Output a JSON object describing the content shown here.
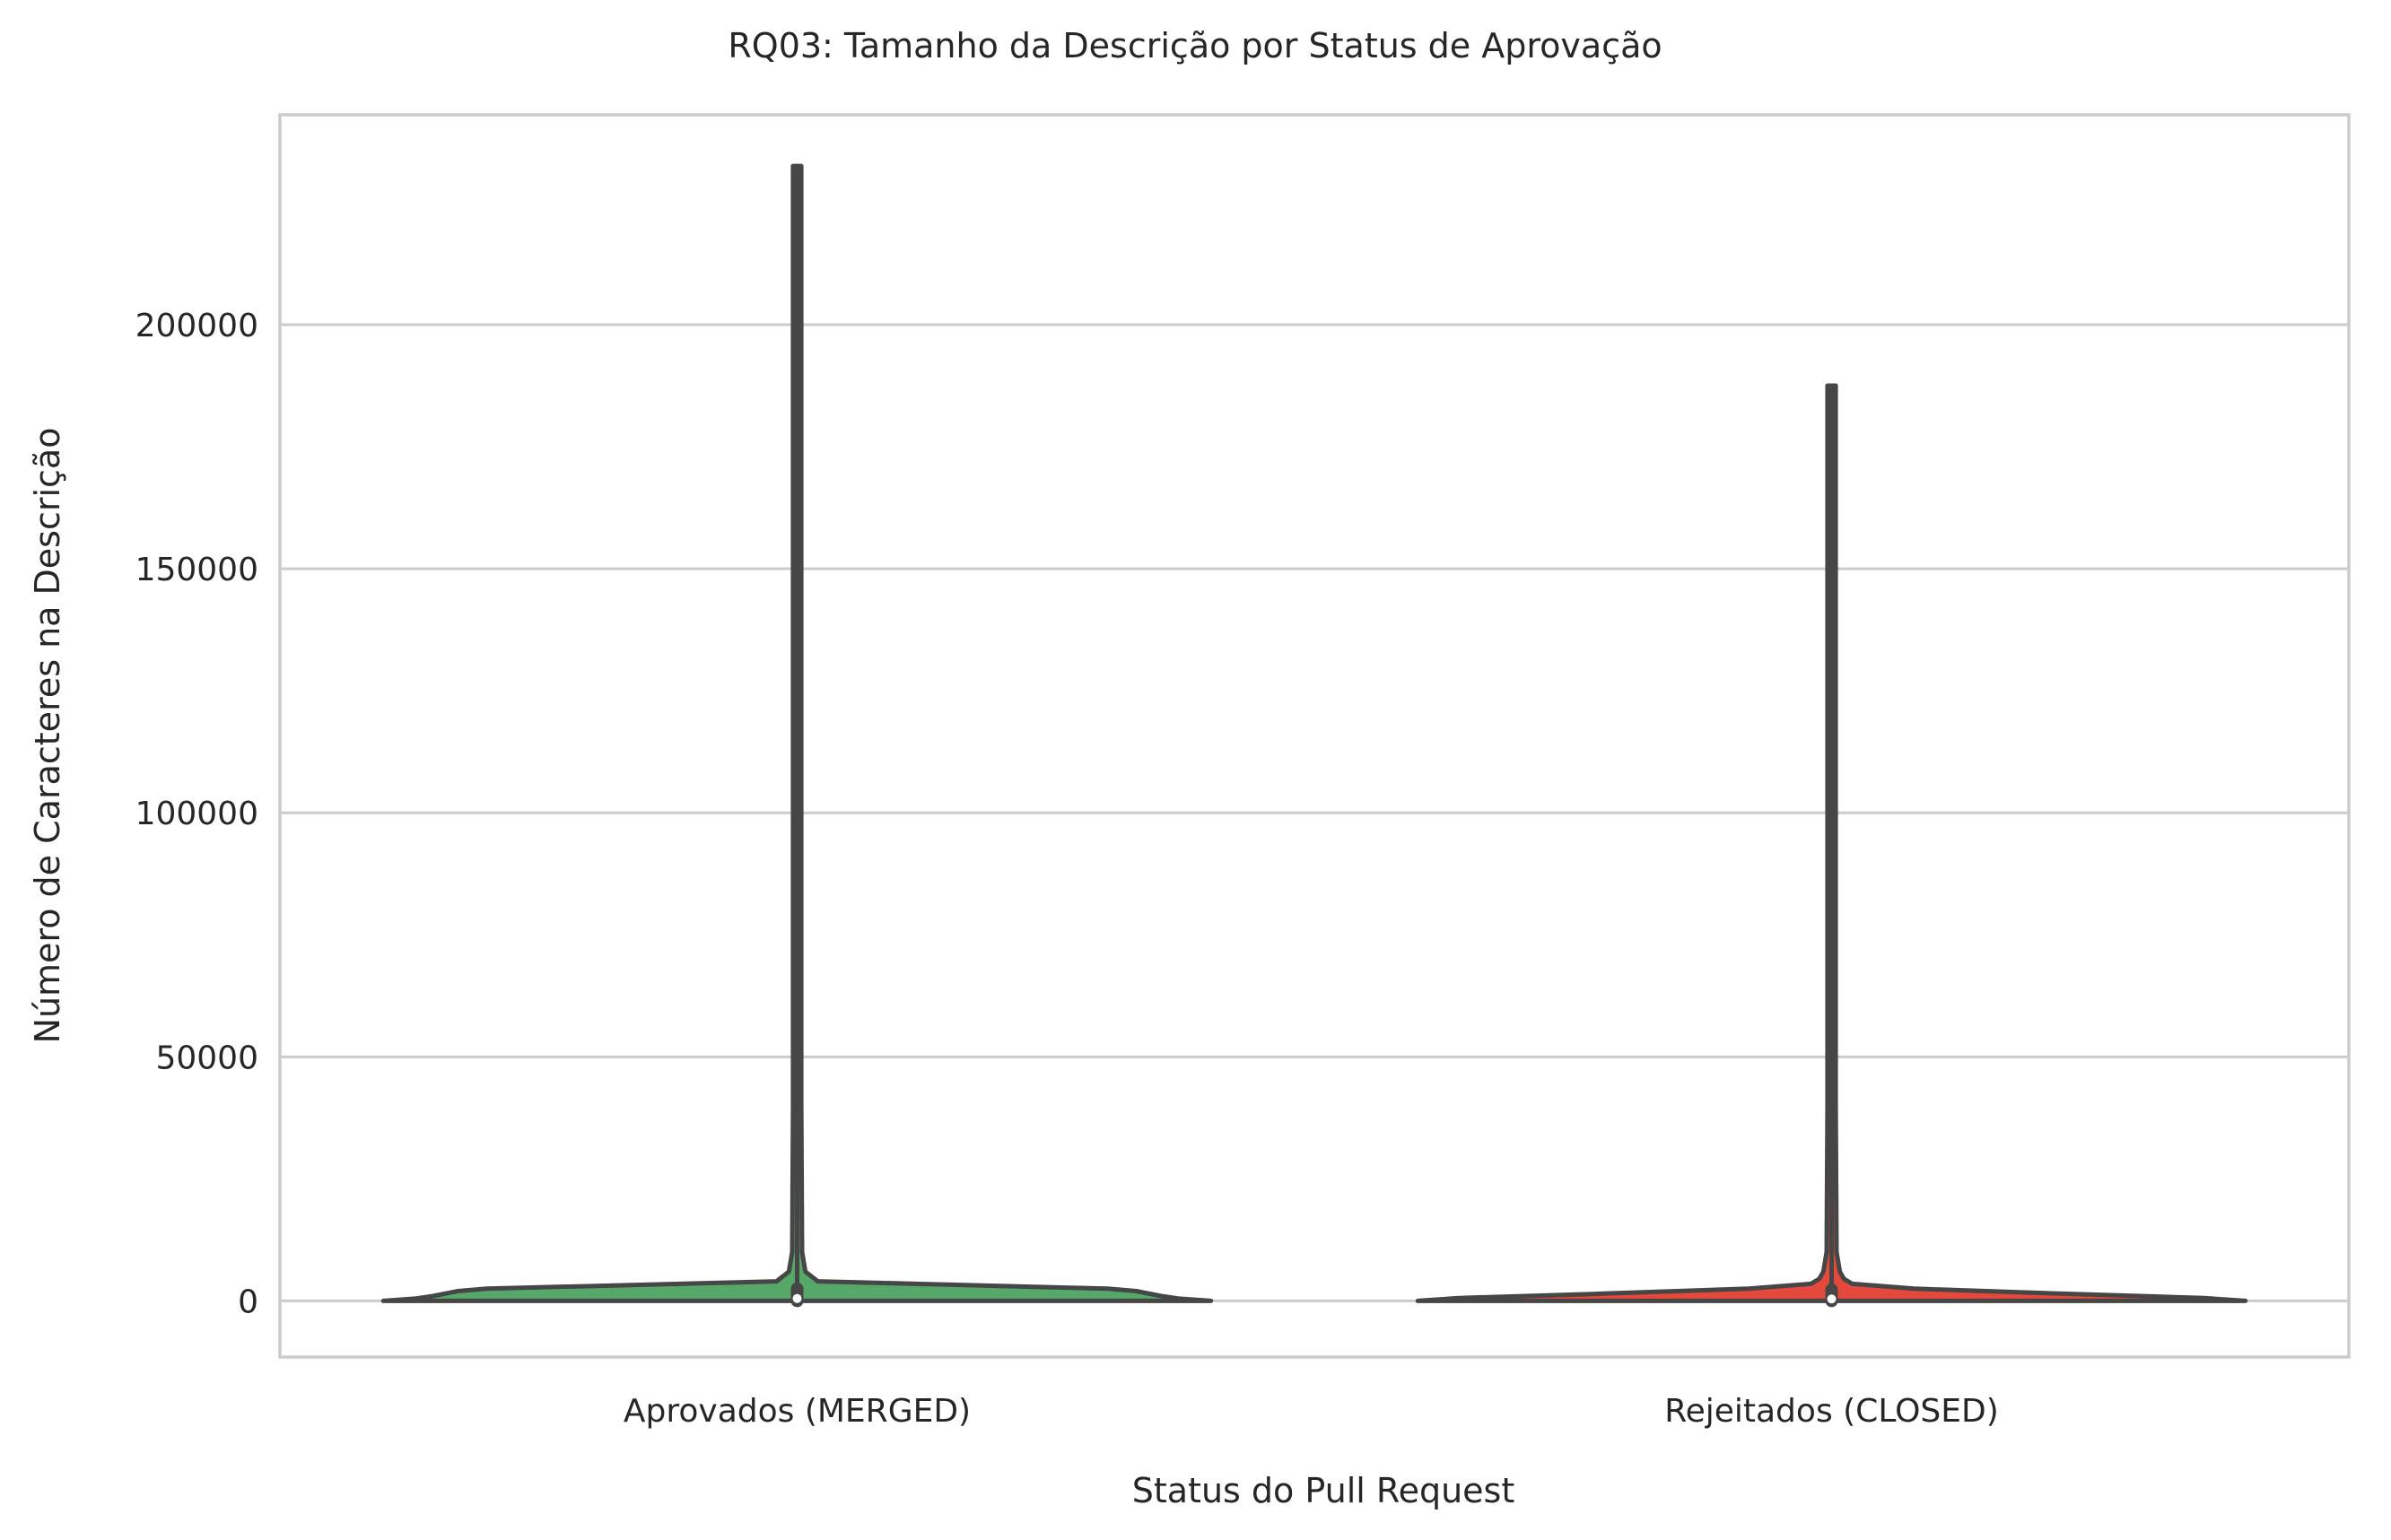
{
  "chart_data": {
    "type": "violin",
    "title": "RQ03: Tamanho da Descrição por Status de Aprovação",
    "xlabel": "Status do Pull Request",
    "ylabel": "Número de Caracteres na Descrição",
    "categories": [
      "Aprovados (MERGED)",
      "Rejeitados (CLOSED)"
    ],
    "ylim": [
      -11500,
      243000
    ],
    "yticks": [
      0,
      50000,
      100000,
      150000,
      200000
    ],
    "ytick_labels": [
      "0",
      "50000",
      "100000",
      "150000",
      "200000"
    ],
    "grid": "horizontal",
    "series": [
      {
        "category": "Aprovados (MERGED)",
        "color": "#55a868",
        "min": 0,
        "max": 232500,
        "q1": 0,
        "median": 500,
        "q3": 2500,
        "density_profile": [
          [
            0,
            1.0
          ],
          [
            500,
            0.92
          ],
          [
            1000,
            0.88
          ],
          [
            2000,
            0.82
          ],
          [
            2500,
            0.75
          ],
          [
            4000,
            0.05
          ],
          [
            6000,
            0.02
          ],
          [
            10000,
            0.012
          ],
          [
            40000,
            0.01
          ],
          [
            232500,
            0.01
          ]
        ]
      },
      {
        "category": "Rejeitados (CLOSED)",
        "color": "#e5493c",
        "min": 0,
        "max": 187500,
        "q1": 0,
        "median": 400,
        "q3": 2300,
        "density_profile": [
          [
            0,
            1.0
          ],
          [
            600,
            0.9
          ],
          [
            1500,
            0.55
          ],
          [
            2500,
            0.2
          ],
          [
            3500,
            0.05
          ],
          [
            4500,
            0.03
          ],
          [
            6000,
            0.02
          ],
          [
            10000,
            0.012
          ],
          [
            40000,
            0.01
          ],
          [
            187500,
            0.01
          ]
        ]
      }
    ]
  }
}
